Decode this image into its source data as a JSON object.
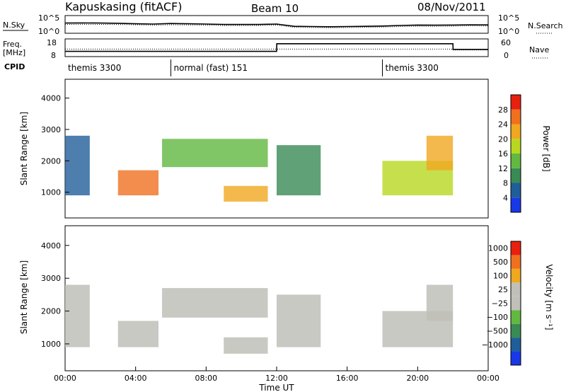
{
  "header": {
    "station": "Kapuskasing (fitACF)",
    "beam": "Beam 10",
    "date": "08/Nov/2011"
  },
  "chart_data": [
    {
      "type": "line",
      "panel": "noise",
      "left_label": "N.Sky",
      "right_label": "N.Search",
      "left_ticks": [
        "10^5",
        "10^0"
      ],
      "right_ticks": [
        "10^5",
        "10^0"
      ],
      "scale": "log",
      "ylim": [
        1,
        100000
      ],
      "x": [
        0,
        1,
        2,
        3,
        4,
        5,
        6,
        7,
        8,
        9,
        10,
        11,
        12,
        13,
        14,
        15,
        16,
        17,
        18,
        19,
        20,
        21,
        22,
        23,
        24
      ],
      "series": [
        {
          "values": [
            800,
            900,
            800,
            700,
            500,
            400,
            600,
            500,
            400,
            300,
            300,
            300,
            400,
            80,
            70,
            60,
            70,
            80,
            100,
            150,
            200,
            180,
            200,
            250,
            220
          ]
        },
        {
          "values": [
            300,
            350,
            320,
            300,
            250,
            200,
            250,
            220,
            200,
            150,
            150,
            150,
            200,
            40,
            35,
            30,
            35,
            40,
            50,
            70,
            90,
            80,
            90,
            120,
            100
          ]
        }
      ]
    },
    {
      "type": "line",
      "panel": "frequency",
      "left_label": "Freq. [MHz]",
      "right_label": "Nave",
      "left_ticks": [
        "18",
        "8"
      ],
      "right_ticks": [
        "60",
        "0"
      ],
      "ylim": [
        8,
        18
      ],
      "y2lim": [
        0,
        60
      ],
      "x": [
        0,
        1,
        2,
        3,
        4,
        5,
        6,
        7,
        8,
        9,
        10,
        11,
        12,
        12.01,
        13,
        14,
        15,
        16,
        17,
        18,
        19,
        20,
        21,
        22,
        22.01,
        23,
        24
      ],
      "series": [
        {
          "values": [
            10.8,
            10.8,
            10.8,
            10.8,
            10.8,
            10.8,
            10.8,
            10.8,
            10.8,
            10.8,
            10.8,
            10.8,
            10.8,
            15.5,
            15.5,
            15.5,
            15.5,
            15.5,
            15.5,
            15.5,
            15.5,
            15.5,
            15.5,
            15.5,
            12.0,
            12.0,
            12.0
          ]
        },
        {
          "values": [
            25,
            25,
            25,
            25,
            25,
            25,
            25,
            25,
            25,
            25,
            25,
            25,
            25,
            25,
            25,
            25,
            25,
            25,
            25,
            25,
            25,
            25,
            25,
            25,
            22,
            22,
            22
          ]
        }
      ]
    },
    {
      "type": "table",
      "panel": "cpid",
      "label": "CPID",
      "segments": [
        {
          "start": 0,
          "end": 6,
          "label": "themis 3300"
        },
        {
          "start": 6,
          "end": 18,
          "label": "normal (fast) 151"
        },
        {
          "start": 18,
          "end": 24,
          "label": "themis 3300"
        }
      ]
    },
    {
      "type": "heatmap",
      "panel": "power",
      "ylabel": "Slant Range [km]",
      "yticks": [
        1000,
        2000,
        3000,
        4000
      ],
      "ylim": [
        180,
        4600
      ],
      "colorbar": {
        "label": "Power [dB]",
        "ticks": [
          "4",
          "8",
          "12",
          "16",
          "20",
          "24",
          "28"
        ],
        "range": [
          0,
          30
        ],
        "colors": [
          "#1838e8",
          "#205e9a",
          "#3a8a55",
          "#62b840",
          "#b8d820",
          "#f0a820",
          "#f07020",
          "#e82010"
        ]
      },
      "features": [
        {
          "t": [
            0,
            1.4
          ],
          "r": [
            900,
            2800
          ],
          "value": 6
        },
        {
          "t": [
            3.0,
            5.3
          ],
          "r": [
            900,
            1700
          ],
          "value": 26
        },
        {
          "t": [
            5.5,
            11.5
          ],
          "r": [
            1800,
            2700
          ],
          "value": 12
        },
        {
          "t": [
            9.0,
            11.5
          ],
          "r": [
            700,
            1200
          ],
          "value": 22
        },
        {
          "t": [
            12.0,
            14.5
          ],
          "r": [
            900,
            2500
          ],
          "value": 8
        },
        {
          "t": [
            18.0,
            22.0
          ],
          "r": [
            900,
            2000
          ],
          "value": 16
        },
        {
          "t": [
            20.5,
            22.0
          ],
          "r": [
            1700,
            2800
          ],
          "value": 20
        }
      ]
    },
    {
      "type": "heatmap",
      "panel": "velocity",
      "ylabel": "Slant Range [km]",
      "yticks": [
        1000,
        2000,
        3000,
        4000
      ],
      "ylim": [
        180,
        4600
      ],
      "colorbar": {
        "label": "Velocity [m s⁻¹]",
        "ticks": [
          "1000",
          "500",
          "100",
          "25",
          "−25",
          "−100",
          "−500",
          "−1000"
        ],
        "colors": [
          "#1838e8",
          "#205e9a",
          "#3a8a55",
          "#62b840",
          "#c0c0b8",
          "#c0c0b8",
          "#f0a820",
          "#f07020",
          "#e82010"
        ]
      },
      "xlabel": "Time UT",
      "xticks": [
        "00:00",
        "04:00",
        "08:00",
        "12:00",
        "16:00",
        "20:00",
        "00:00"
      ],
      "xlim": [
        0,
        24
      ]
    }
  ]
}
